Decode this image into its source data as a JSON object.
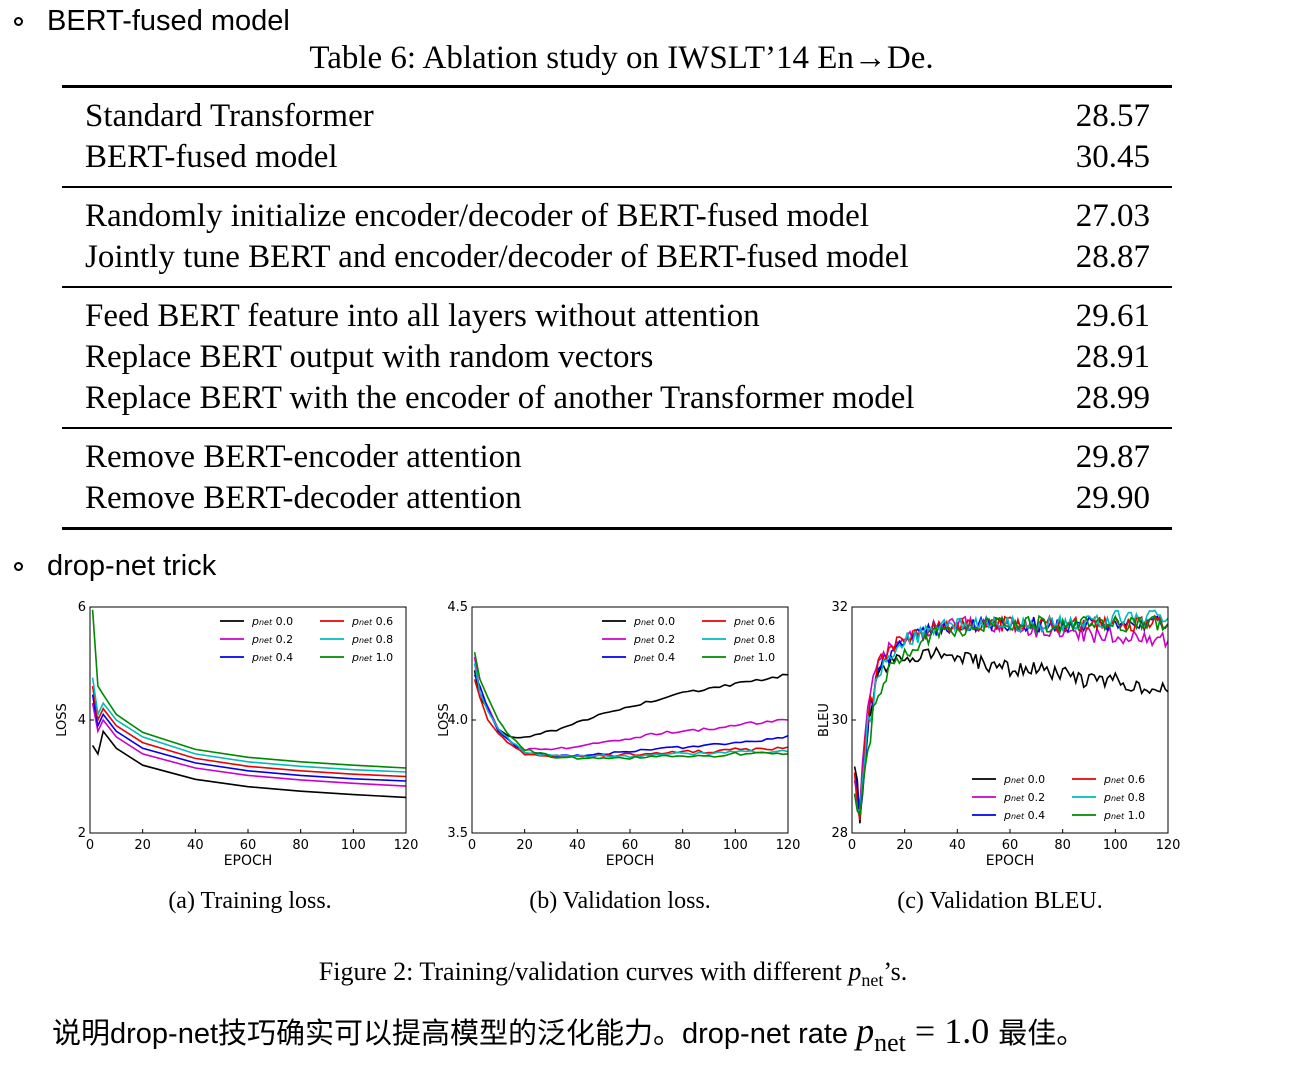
{
  "bullets": {
    "first": "BERT-fused model",
    "second": "drop-net trick"
  },
  "table": {
    "caption": "Table 6: Ablation study on IWSLT’14 En→De.",
    "groups": [
      [
        [
          "Standard Transformer",
          "28.57"
        ],
        [
          "BERT-fused model",
          "30.45"
        ]
      ],
      [
        [
          "Randomly initialize encoder/decoder of BERT-fused model",
          "27.03"
        ],
        [
          "Jointly tune BERT and encoder/decoder of BERT-fused model",
          "28.87"
        ]
      ],
      [
        [
          "Feed BERT feature into all layers without attention",
          "29.61"
        ],
        [
          "Replace BERT output with random vectors",
          "28.91"
        ],
        [
          "Replace BERT with the encoder of another Transformer model",
          "28.99"
        ]
      ],
      [
        [
          "Remove BERT-encoder attention",
          "29.87"
        ],
        [
          "Remove BERT-decoder attention",
          "29.90"
        ]
      ]
    ]
  },
  "figure": {
    "caption_prefix": "Figure 2: Training/validation curves with different ",
    "caption_p": "p",
    "caption_sub": "net",
    "caption_suffix": "’s."
  },
  "conclusion": {
    "text": "说明drop-net技巧确实可以提高模型的泛化能力。drop-net rate ",
    "p": "p",
    "sub": "net",
    "eq": " = 1.0 ",
    "tail": "最佳。"
  },
  "legend_labels": [
    "pnet 0.0",
    "pnet 0.2",
    "pnet 0.4",
    "pnet 0.6",
    "pnet 0.8",
    "pnet 1.0"
  ],
  "chart_data": [
    {
      "type": "line",
      "caption": "(a) Training loss.",
      "xlabel": "EPOCH",
      "ylabel": "LOSS",
      "xlim": [
        0,
        120
      ],
      "ylim": [
        2,
        6
      ],
      "xticks": [
        0,
        20,
        40,
        60,
        80,
        100,
        120
      ],
      "yticks": [
        2,
        4,
        6
      ],
      "legend_position": "top-right",
      "x": [
        1,
        3,
        5,
        10,
        20,
        40,
        60,
        80,
        100,
        120
      ],
      "series": [
        {
          "name": "pnet 0.0",
          "color": "#000000",
          "values": [
            3.55,
            3.4,
            3.8,
            3.5,
            3.2,
            2.95,
            2.82,
            2.74,
            2.68,
            2.63
          ]
        },
        {
          "name": "pnet 0.2",
          "color": "#cc00cc",
          "values": [
            4.3,
            3.8,
            4.0,
            3.7,
            3.4,
            3.15,
            3.02,
            2.94,
            2.88,
            2.83
          ]
        },
        {
          "name": "pnet 0.4",
          "color": "#0000ee",
          "values": [
            4.45,
            3.9,
            4.1,
            3.8,
            3.5,
            3.24,
            3.1,
            3.02,
            2.96,
            2.92
          ]
        },
        {
          "name": "pnet 0.6",
          "color": "#ee0000",
          "values": [
            4.6,
            4.0,
            4.2,
            3.9,
            3.6,
            3.32,
            3.18,
            3.1,
            3.04,
            3.0
          ]
        },
        {
          "name": "pnet 0.8",
          "color": "#00bbbb",
          "values": [
            4.75,
            4.1,
            4.3,
            4.0,
            3.7,
            3.4,
            3.26,
            3.18,
            3.12,
            3.08
          ]
        },
        {
          "name": "pnet 1.0",
          "color": "#008800",
          "values": [
            5.95,
            4.6,
            4.45,
            4.1,
            3.78,
            3.48,
            3.34,
            3.26,
            3.2,
            3.15
          ]
        }
      ]
    },
    {
      "type": "line",
      "caption": "(b) Validation loss.",
      "xlabel": "EPOCH",
      "ylabel": "LOSS",
      "xlim": [
        0,
        120
      ],
      "ylim": [
        3.5,
        4.5
      ],
      "xticks": [
        0,
        20,
        40,
        60,
        80,
        100,
        120
      ],
      "yticks": [
        3.5,
        4.0,
        4.5
      ],
      "legend_position": "top-right",
      "x": [
        1,
        3,
        6,
        10,
        15,
        20,
        30,
        40,
        50,
        60,
        70,
        80,
        90,
        100,
        110,
        120
      ],
      "series": [
        {
          "name": "pnet 0.0",
          "color": "#000000",
          "values": [
            4.22,
            4.1,
            4.05,
            3.96,
            3.92,
            3.92,
            3.95,
            3.99,
            4.03,
            4.06,
            4.09,
            4.12,
            4.14,
            4.16,
            4.18,
            4.2
          ]
        },
        {
          "name": "pnet 0.2",
          "color": "#cc00cc",
          "values": [
            4.28,
            4.12,
            4.06,
            3.96,
            3.9,
            3.87,
            3.87,
            3.88,
            3.9,
            3.92,
            3.94,
            3.95,
            3.96,
            3.98,
            3.99,
            4.0
          ]
        },
        {
          "name": "pnet 0.4",
          "color": "#0000ee",
          "values": [
            4.2,
            4.15,
            4.05,
            3.95,
            3.9,
            3.86,
            3.84,
            3.84,
            3.85,
            3.86,
            3.87,
            3.88,
            3.89,
            3.9,
            3.91,
            3.93
          ]
        },
        {
          "name": "pnet 0.6",
          "color": "#ee0000",
          "values": [
            4.18,
            4.1,
            4.0,
            3.94,
            3.89,
            3.85,
            3.84,
            3.84,
            3.84,
            3.85,
            3.85,
            3.86,
            3.86,
            3.87,
            3.87,
            3.88
          ]
        },
        {
          "name": "pnet 0.8",
          "color": "#00bbbb",
          "values": [
            4.25,
            4.12,
            4.04,
            3.96,
            3.9,
            3.86,
            3.84,
            3.84,
            3.84,
            3.84,
            3.85,
            3.85,
            3.85,
            3.86,
            3.86,
            3.86
          ]
        },
        {
          "name": "pnet 1.0",
          "color": "#008800",
          "values": [
            4.3,
            4.18,
            4.1,
            4.0,
            3.92,
            3.87,
            3.84,
            3.83,
            3.83,
            3.83,
            3.84,
            3.84,
            3.84,
            3.85,
            3.85,
            3.85
          ]
        }
      ]
    },
    {
      "type": "line",
      "caption": "(c) Validation BLEU.",
      "xlabel": "EPOCH",
      "ylabel": "BLEU",
      "xlim": [
        0,
        120
      ],
      "ylim": [
        28,
        32
      ],
      "xticks": [
        0,
        20,
        40,
        60,
        80,
        100,
        120
      ],
      "yticks": [
        28,
        30,
        32
      ],
      "legend_position": "bottom-right",
      "x": [
        1,
        3,
        6,
        10,
        15,
        20,
        30,
        40,
        50,
        60,
        70,
        80,
        90,
        100,
        110,
        120
      ],
      "series": [
        {
          "name": "pnet 0.0",
          "color": "#000000",
          "values": [
            29.2,
            28.2,
            29.8,
            30.8,
            31.0,
            31.1,
            31.2,
            31.1,
            31.0,
            30.9,
            30.9,
            30.8,
            30.7,
            30.7,
            30.6,
            30.5
          ]
        },
        {
          "name": "pnet 0.2",
          "color": "#cc00cc",
          "values": [
            28.8,
            28.5,
            30.2,
            31.0,
            31.3,
            31.4,
            31.6,
            31.7,
            31.7,
            31.7,
            31.6,
            31.6,
            31.5,
            31.5,
            31.4,
            31.4
          ]
        },
        {
          "name": "pnet 0.4",
          "color": "#0000ee",
          "values": [
            29.0,
            28.3,
            30.0,
            30.9,
            31.2,
            31.4,
            31.6,
            31.7,
            31.7,
            31.7,
            31.7,
            31.7,
            31.7,
            31.7,
            31.7,
            31.7
          ]
        },
        {
          "name": "pnet 0.6",
          "color": "#ee0000",
          "values": [
            28.9,
            28.4,
            30.1,
            31.0,
            31.3,
            31.4,
            31.6,
            31.7,
            31.7,
            31.7,
            31.7,
            31.7,
            31.7,
            31.7,
            31.7,
            31.7
          ]
        },
        {
          "name": "pnet 0.8",
          "color": "#00bbbb",
          "values": [
            28.7,
            28.2,
            29.9,
            30.8,
            31.2,
            31.4,
            31.6,
            31.7,
            31.7,
            31.7,
            31.7,
            31.7,
            31.7,
            31.8,
            31.8,
            31.8
          ]
        },
        {
          "name": "pnet 1.0",
          "color": "#008800",
          "values": [
            28.5,
            28.1,
            29.6,
            30.5,
            31.0,
            31.2,
            31.5,
            31.6,
            31.7,
            31.7,
            31.7,
            31.7,
            31.7,
            31.7,
            31.7,
            31.7
          ]
        }
      ]
    }
  ]
}
